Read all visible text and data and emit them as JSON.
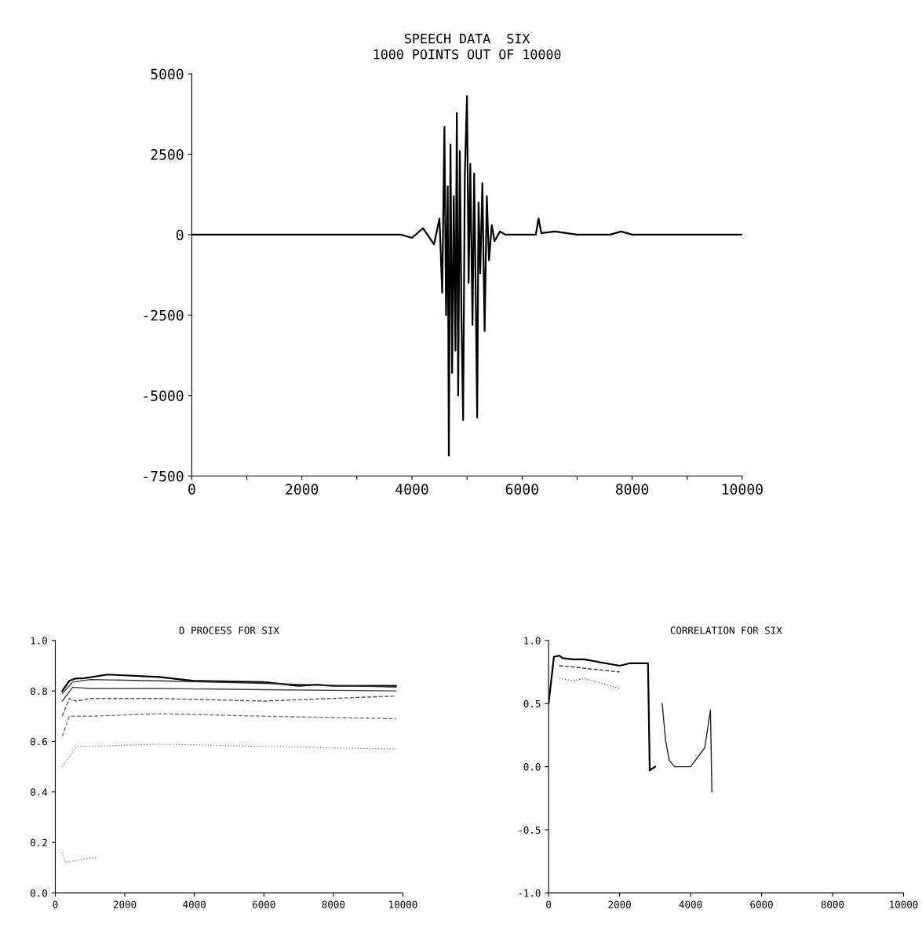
{
  "chart_data": [
    {
      "type": "line",
      "title": "SPEECH DATA  SIX",
      "subtitle": "1000 POINTS OUT OF 10000",
      "xlim": [
        0,
        10000
      ],
      "ylim": [
        -7500,
        5000
      ],
      "xticks": [
        0,
        {
          "value": 1000,
          "label": null
        },
        2000,
        {
          "value": 3000,
          "label": null
        },
        4000,
        {
          "value": 5000,
          "label": null
        },
        6000,
        {
          "value": 7000,
          "label": null
        },
        8000,
        {
          "value": 9000,
          "label": null
        },
        10000
      ],
      "yticks": [
        -7500,
        -5000,
        -2500,
        0,
        2500,
        5000
      ],
      "series": [
        {
          "color": "#000000",
          "line_style": "solid",
          "x": [
            0,
            1000,
            2000,
            3000,
            3800,
            4000,
            4200,
            4400,
            4500,
            4550,
            4590,
            4620,
            4650,
            4670,
            4700,
            4730,
            4760,
            4790,
            4815,
            4840,
            4870,
            4900,
            4930,
            4960,
            5000,
            5030,
            5060,
            5100,
            5130,
            5160,
            5185,
            5210,
            5240,
            5280,
            5320,
            5360,
            5400,
            5450,
            5500,
            5600,
            5700,
            6000,
            6250,
            6300,
            6350,
            6600,
            7000,
            7600,
            7800,
            8000,
            10000
          ],
          "values": [
            0,
            0,
            0,
            0,
            0,
            -100,
            200,
            -300,
            500,
            -1800,
            3350,
            -2500,
            1500,
            -6870,
            2800,
            -4300,
            1200,
            -3600,
            3780,
            -5000,
            2600,
            -2600,
            -5760,
            1800,
            4310,
            -1500,
            2200,
            -2800,
            1900,
            -2000,
            -5690,
            1000,
            -1200,
            1600,
            -3000,
            1200,
            -800,
            300,
            -200,
            100,
            0,
            0,
            0,
            500,
            50,
            100,
            0,
            0,
            100,
            0,
            0
          ]
        }
      ]
    },
    {
      "type": "line",
      "title": "D PROCESS FOR SIX",
      "xlim": [
        0,
        10000
      ],
      "ylim": [
        0.0,
        1.0
      ],
      "xticks": [
        0,
        2000,
        4000,
        6000,
        8000,
        10000
      ],
      "yticks": [
        {
          "value": 0,
          "label": "0.0"
        },
        0.2,
        0.4,
        0.6,
        0.8,
        {
          "value": 1,
          "label": "1.0"
        }
      ],
      "series": [
        {
          "color": "#000000",
          "line_style": "solid",
          "x": [
            200,
            400,
            600,
            800,
            1500,
            3000,
            4000,
            6000,
            7000,
            7500,
            8000,
            9800
          ],
          "values": [
            0.8,
            0.84,
            0.85,
            0.85,
            0.865,
            0.855,
            0.84,
            0.835,
            0.82,
            0.825,
            0.82,
            0.82
          ]
        },
        {
          "color": "#333333",
          "line_style": "solid",
          "x": [
            200,
            500,
            1000,
            3000,
            6000,
            9800
          ],
          "values": [
            0.79,
            0.835,
            0.845,
            0.84,
            0.83,
            0.815
          ]
        },
        {
          "color": "#444444",
          "line_style": "solid",
          "x": [
            200,
            500,
            1000,
            3000,
            6000,
            9800
          ],
          "values": [
            0.76,
            0.815,
            0.81,
            0.81,
            0.805,
            0.8
          ]
        },
        {
          "color": "#555555",
          "line_style": "dashed",
          "x": [
            200,
            400,
            600,
            1000,
            3000,
            6000,
            9800
          ],
          "values": [
            0.7,
            0.77,
            0.76,
            0.77,
            0.77,
            0.76,
            0.78
          ]
        },
        {
          "color": "#777777",
          "line_style": "dashed",
          "x": [
            200,
            400,
            1000,
            3000,
            6000,
            9800
          ],
          "values": [
            0.62,
            0.7,
            0.7,
            0.71,
            0.7,
            0.69
          ]
        },
        {
          "color": "#888888",
          "line_style": "dotted",
          "x": [
            200,
            600,
            1000,
            3000,
            6000,
            9800
          ],
          "values": [
            0.5,
            0.58,
            0.58,
            0.59,
            0.58,
            0.57
          ]
        },
        {
          "color": "#888888",
          "line_style": "dotted",
          "x": [
            200,
            300,
            600,
            1200
          ],
          "values": [
            0.16,
            0.12,
            0.13,
            0.14
          ]
        }
      ]
    },
    {
      "type": "line",
      "title": "CORRELATION FOR SIX",
      "xlim": [
        0,
        10000
      ],
      "ylim": [
        -1.0,
        1.0
      ],
      "xticks": [
        0,
        2000,
        4000,
        6000,
        8000,
        10000
      ],
      "yticks": [
        {
          "value": -1,
          "label": "-1.0"
        },
        -0.5,
        {
          "value": 0,
          "label": "0.0"
        },
        0.5,
        {
          "value": 1,
          "label": "1.0"
        }
      ],
      "series": [
        {
          "color": "#000000",
          "line_style": "solid",
          "x": [
            0,
            150,
            300,
            400,
            700,
            1000,
            2000,
            2300,
            2800,
            2850,
            3000
          ],
          "values": [
            0.5,
            0.87,
            0.88,
            0.86,
            0.85,
            0.85,
            0.8,
            0.82,
            0.82,
            -0.03,
            0.0
          ]
        },
        {
          "color": "#333333",
          "line_style": "dashed",
          "x": [
            300,
            700,
            1000,
            2000
          ],
          "values": [
            0.8,
            0.79,
            0.78,
            0.75
          ]
        },
        {
          "color": "#666666",
          "line_style": "dotted",
          "x": [
            300,
            700,
            1000,
            2000
          ],
          "values": [
            0.7,
            0.68,
            0.7,
            0.62
          ]
        },
        {
          "color": "#222222",
          "line_style": "solid",
          "x": [
            3200,
            3300,
            3400,
            3550,
            4000,
            4400,
            4560,
            4600
          ],
          "values": [
            0.5,
            0.2,
            0.05,
            0.0,
            0.0,
            0.15,
            0.45,
            -0.2
          ]
        }
      ]
    }
  ]
}
